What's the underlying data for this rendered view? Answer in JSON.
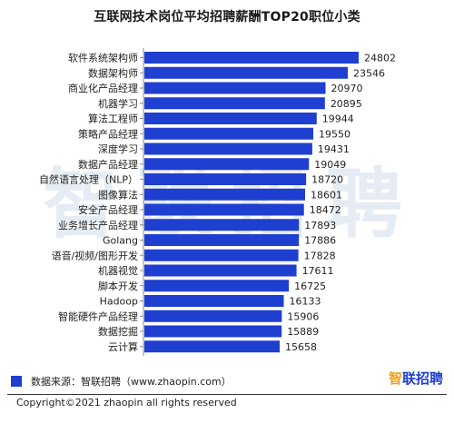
{
  "title": "互联网技术岗位平均招聘薪酬TOP20职位小类",
  "watermark": "智联招聘",
  "colors": {
    "bar": "#1f3fd1",
    "accent": "#f0a020"
  },
  "chart_data": {
    "type": "bar",
    "orientation": "horizontal",
    "title": "互联网技术岗位平均招聘薪酬TOP20职位小类",
    "categories": [
      "软件系统架构师",
      "数据架构师",
      "商业化产品经理",
      "机器学习",
      "算法工程师",
      "策略产品经理",
      "深度学习",
      "数据产品经理",
      "自然语言处理（NLP）",
      "图像算法",
      "安全产品经理",
      "业务增长产品经理",
      "Golang",
      "语音/视频/图形开发",
      "机器视觉",
      "脚本开发",
      "Hadoop",
      "智能硬件产品经理",
      "数据挖掘",
      "云计算"
    ],
    "values": [
      24802,
      23546,
      20970,
      20895,
      19944,
      19550,
      19431,
      19049,
      18720,
      18601,
      18472,
      17893,
      17886,
      17828,
      17611,
      16725,
      16133,
      15906,
      15889,
      15658
    ],
    "xlim": [
      0,
      25000
    ],
    "xlabel": "",
    "ylabel": "",
    "grid": false,
    "legend": "none"
  },
  "footer": {
    "source": "数据来源：智联招聘（www.zhaopin.com）",
    "logo_main": "智",
    "logo_rest": "联招聘",
    "copyright": "Copyright©2021 zhaopin all rights reserved"
  }
}
